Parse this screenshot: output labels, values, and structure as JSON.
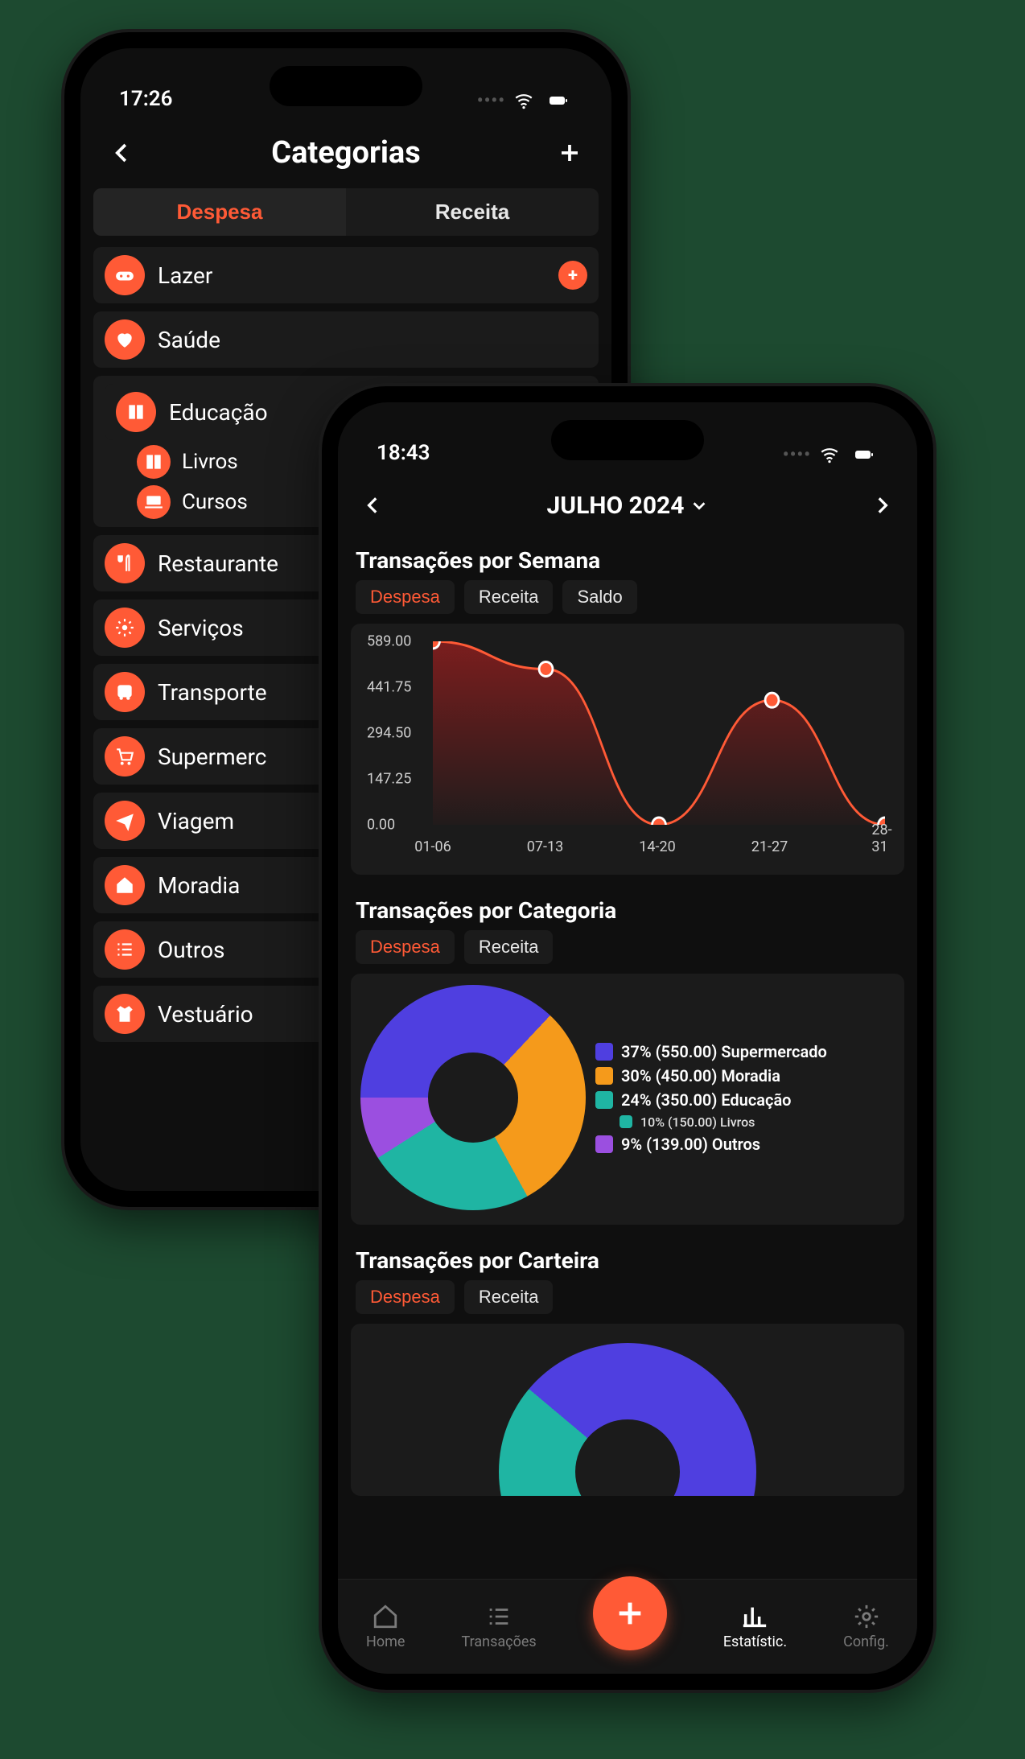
{
  "accent_color": "#ff5a36",
  "card_bg": "#1b1b1b",
  "screen_bg": "#0f0f0f",
  "phoneA": {
    "status_time": "17:26",
    "header_title": "Categorias",
    "seg_tabs": {
      "expense": "Despesa",
      "income": "Receita",
      "active": "expense"
    },
    "categories": [
      {
        "icon": "gamepad",
        "label": "Lazer",
        "has_add": true
      },
      {
        "icon": "heart",
        "label": "Saúde"
      },
      {
        "icon": "book",
        "label": "Educação",
        "subs": [
          {
            "icon": "book",
            "label": "Livros"
          },
          {
            "icon": "laptop",
            "label": "Cursos"
          }
        ]
      },
      {
        "icon": "utensils",
        "label": "Restaurante"
      },
      {
        "icon": "gear",
        "label": "Serviços"
      },
      {
        "icon": "bus",
        "label": "Transporte"
      },
      {
        "icon": "cart",
        "label": "Supermerc"
      },
      {
        "icon": "plane",
        "label": "Viagem"
      },
      {
        "icon": "home",
        "label": "Moradia"
      },
      {
        "icon": "list",
        "label": "Outros"
      },
      {
        "icon": "tshirt",
        "label": "Vestuário"
      }
    ]
  },
  "phoneB": {
    "status_time": "18:43",
    "month_label": "JULHO 2024",
    "section1_title": "Transações por Semana",
    "area_chart": {
      "type": "area",
      "tabs": [
        "Despesa",
        "Receita",
        "Saldo"
      ],
      "active_tab": 0,
      "x_labels": [
        "01-06",
        "07-13",
        "14-20",
        "21-27",
        "28-31"
      ],
      "y_ticks": [
        0.0,
        147.25,
        294.5,
        441.75,
        589.0
      ],
      "y_tick_labels": [
        "0.00",
        "147.25",
        "294.50",
        "441.75",
        "589.00"
      ],
      "ylim": [
        0,
        589
      ],
      "values": [
        589,
        500,
        0,
        400,
        0
      ],
      "line_color": "#ff5a36",
      "marker_color": "#ff5a36",
      "marker_border": "#ffffff",
      "fill_from": "rgba(140,30,30,0.85)",
      "fill_to": "rgba(140,30,30,0.05)",
      "background_color": "#1b1b1b",
      "label_color": "#cfcfcf",
      "label_fontsize": 18,
      "marker_radius": 9
    },
    "section2_title": "Transações por Categoria",
    "donut_chart": {
      "type": "donut",
      "tabs": [
        "Despesa",
        "Receita"
      ],
      "active_tab": 0,
      "slices": [
        {
          "pct": 37,
          "value": "550.00",
          "label": "Supermercado",
          "color": "#4f3fe0"
        },
        {
          "pct": 30,
          "value": "450.00",
          "label": "Moradia",
          "color": "#f59a1b"
        },
        {
          "pct": 24,
          "value": "350.00",
          "label": "Educação",
          "color": "#1fb5a3",
          "sub": {
            "pct": 10,
            "value": "150.00",
            "label": "Livros",
            "color": "#1fb5a3"
          }
        },
        {
          "pct": 9,
          "value": "139.00",
          "label": "Outros",
          "color": "#9b4fe0"
        }
      ],
      "hole_color": "#1b1b1b",
      "legend_fontsize": 20
    },
    "section3_title": "Transações por Carteira",
    "wallet_chart": {
      "type": "donut",
      "tabs": [
        "Despesa",
        "Receita"
      ],
      "active_tab": 0,
      "visible_slice_color": "#4f3fe0",
      "secondary_color": "#1fb5a3",
      "hole_color": "#1b1b1b"
    },
    "tabbar": {
      "items": [
        {
          "icon": "home",
          "label": "Home"
        },
        {
          "icon": "list",
          "label": "Transações"
        },
        {
          "icon": "plus",
          "label": ""
        },
        {
          "icon": "stats",
          "label": "Estatístic."
        },
        {
          "icon": "gear",
          "label": "Config."
        }
      ],
      "active_index": 3
    }
  }
}
